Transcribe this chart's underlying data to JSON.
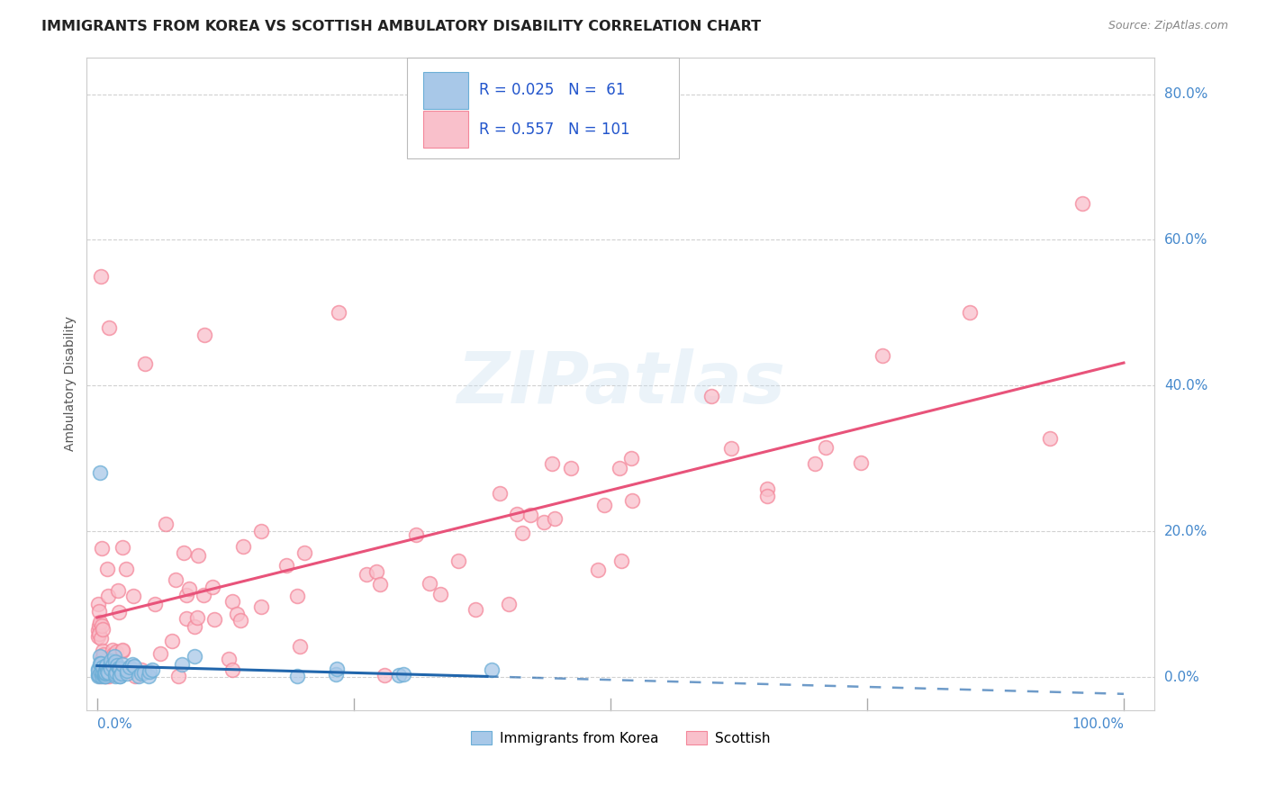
{
  "title": "IMMIGRANTS FROM KOREA VS SCOTTISH AMBULATORY DISABILITY CORRELATION CHART",
  "source": "Source: ZipAtlas.com",
  "ylabel": "Ambulatory Disability",
  "ytick_labels": [
    "0.0%",
    "20.0%",
    "40.0%",
    "60.0%",
    "80.0%"
  ],
  "ytick_values": [
    0.0,
    0.2,
    0.4,
    0.6,
    0.8
  ],
  "legend_label1": "Immigrants from Korea",
  "legend_label2": "Scottish",
  "R1": 0.025,
  "N1": 61,
  "R2": 0.557,
  "N2": 101,
  "blue_color": "#a8c8e8",
  "blue_edge_color": "#6baed6",
  "blue_line_color": "#2166ac",
  "pink_color": "#f9c0cb",
  "pink_edge_color": "#f4879a",
  "pink_line_color": "#e8537a",
  "background_color": "#ffffff",
  "grid_color": "#cccccc",
  "title_fontsize": 11.5,
  "source_fontsize": 9,
  "axis_label_fontsize": 10,
  "tick_label_fontsize": 11,
  "legend_fontsize": 12,
  "watermark_text": "ZIPatlas",
  "watermark_color": "#c8dff0",
  "watermark_alpha": 0.35
}
